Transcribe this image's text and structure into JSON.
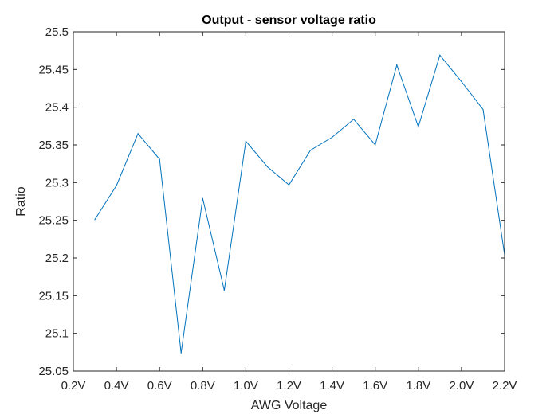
{
  "chart_data": {
    "type": "line",
    "title": "Output - sensor voltage ratio",
    "xlabel": "AWG Voltage",
    "ylabel": "Ratio",
    "xlim": [
      0.2,
      2.2
    ],
    "ylim": [
      25.05,
      25.5
    ],
    "x_ticks": [
      0.2,
      0.4,
      0.6,
      0.8,
      1.0,
      1.2,
      1.4,
      1.6,
      1.8,
      2.0,
      2.2
    ],
    "x_tick_labels": [
      "0.2V",
      "0.4V",
      "0.6V",
      "0.8V",
      "1.0V",
      "1.2V",
      "1.4V",
      "1.6V",
      "1.8V",
      "2.0V",
      "2.2V"
    ],
    "y_ticks": [
      25.05,
      25.1,
      25.15,
      25.2,
      25.25,
      25.3,
      25.35,
      25.4,
      25.45,
      25.5
    ],
    "y_tick_labels": [
      "25.05",
      "25.1",
      "25.15",
      "25.2",
      "25.25",
      "25.3",
      "25.35",
      "25.4",
      "25.45",
      "25.5"
    ],
    "grid": false,
    "series": [
      {
        "color": "#0072BD",
        "x": [
          0.3,
          0.4,
          0.5,
          0.6,
          0.7,
          0.8,
          0.9,
          1.0,
          1.1,
          1.2,
          1.3,
          1.4,
          1.5,
          1.6,
          1.7,
          1.8,
          1.9,
          2.0,
          2.1,
          2.2
        ],
        "y": [
          25.251,
          25.296,
          25.365,
          25.331,
          25.074,
          25.279,
          25.157,
          25.355,
          25.321,
          25.297,
          25.343,
          25.36,
          25.384,
          25.35,
          25.456,
          25.374,
          25.469,
          25.434,
          25.397,
          25.204
        ]
      }
    ]
  }
}
